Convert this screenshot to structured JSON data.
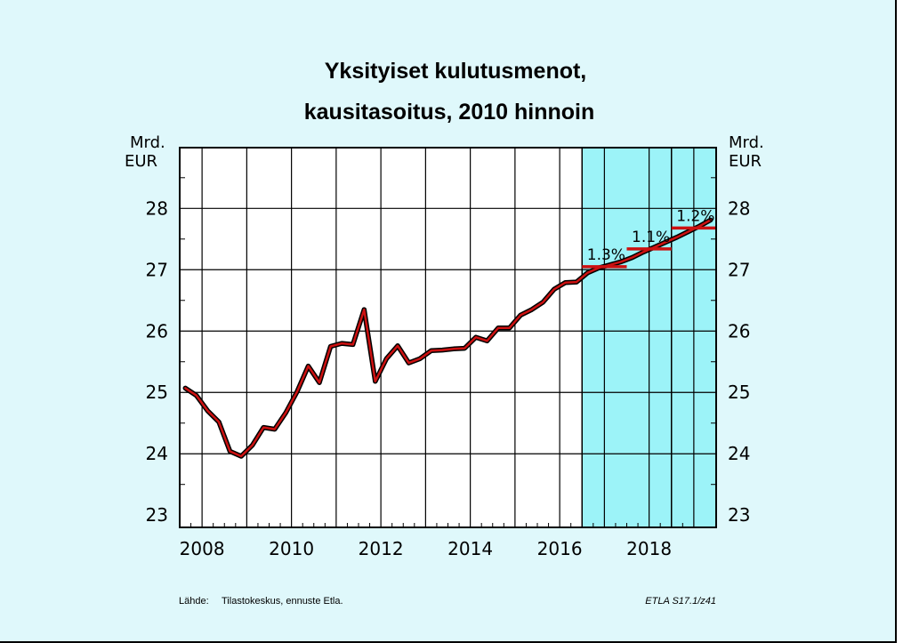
{
  "chart_data": {
    "type": "line",
    "title_lines": [
      "Yksityiset kulutusmenot,",
      "kausitasoitus, 2010 hinnoin"
    ],
    "left_unit": [
      "Mrd.",
      "EUR"
    ],
    "right_unit": [
      "Mrd.",
      "EUR"
    ],
    "xlim": [
      2007.5,
      2019.5
    ],
    "ylim": [
      22.8,
      28.99
    ],
    "y_ticks": [
      23,
      24,
      25,
      26,
      27,
      28
    ],
    "x_ticks": [
      2008,
      2010,
      2012,
      2014,
      2016,
      2018
    ],
    "forecast_start": 2016.5,
    "forecast_divider": 2018.5,
    "grid": true,
    "series": [
      {
        "values": [
          [
            2007.625,
            25.07
          ],
          [
            2007.875,
            24.95
          ],
          [
            2008.125,
            24.7
          ],
          [
            2008.375,
            24.52
          ],
          [
            2008.625,
            24.04
          ],
          [
            2008.875,
            23.96
          ],
          [
            2009.125,
            24.14
          ],
          [
            2009.375,
            24.43
          ],
          [
            2009.625,
            24.4
          ],
          [
            2009.875,
            24.67
          ],
          [
            2010.125,
            25.01
          ],
          [
            2010.375,
            25.43
          ],
          [
            2010.625,
            25.16
          ],
          [
            2010.875,
            25.75
          ],
          [
            2011.125,
            25.8
          ],
          [
            2011.375,
            25.78
          ],
          [
            2011.625,
            26.35
          ],
          [
            2011.875,
            25.18
          ],
          [
            2012.125,
            25.55
          ],
          [
            2012.375,
            25.76
          ],
          [
            2012.625,
            25.48
          ],
          [
            2012.875,
            25.55
          ],
          [
            2013.125,
            25.68
          ],
          [
            2013.375,
            25.69
          ],
          [
            2013.625,
            25.71
          ],
          [
            2013.875,
            25.72
          ],
          [
            2014.125,
            25.9
          ],
          [
            2014.375,
            25.84
          ],
          [
            2014.625,
            26.05
          ],
          [
            2014.875,
            26.05
          ],
          [
            2015.125,
            26.26
          ],
          [
            2015.375,
            26.35
          ],
          [
            2015.625,
            26.47
          ],
          [
            2015.875,
            26.68
          ],
          [
            2016.125,
            26.79
          ],
          [
            2016.375,
            26.8
          ],
          [
            2016.625,
            26.95
          ],
          [
            2016.875,
            27.03
          ],
          [
            2017.125,
            27.08
          ],
          [
            2017.375,
            27.13
          ],
          [
            2017.625,
            27.2
          ],
          [
            2017.875,
            27.29
          ],
          [
            2018.125,
            27.37
          ],
          [
            2018.375,
            27.45
          ],
          [
            2018.625,
            27.53
          ],
          [
            2018.875,
            27.62
          ],
          [
            2019.125,
            27.71
          ],
          [
            2019.375,
            27.81
          ]
        ]
      }
    ],
    "annual_means": [
      {
        "x0": 2016.5,
        "x1": 2017.5,
        "y": 27.05,
        "label": "1.3%"
      },
      {
        "x0": 2017.5,
        "x1": 2018.5,
        "y": 27.34,
        "label": "1.1%"
      },
      {
        "x0": 2018.5,
        "x1": 2019.5,
        "y": 27.68,
        "label": "1.2%"
      }
    ],
    "colors": {
      "line_fill": "#cc1111",
      "line_outline": "#000000",
      "forecast_band": "#9cf3f8",
      "background": "#dff8fb",
      "mean_marker": "#cc1111"
    }
  },
  "footer": {
    "source_label": "Lähde:",
    "source_text": "Tilastokeskus, ennuste Etla.",
    "code": "ETLA S17.1/z41"
  }
}
